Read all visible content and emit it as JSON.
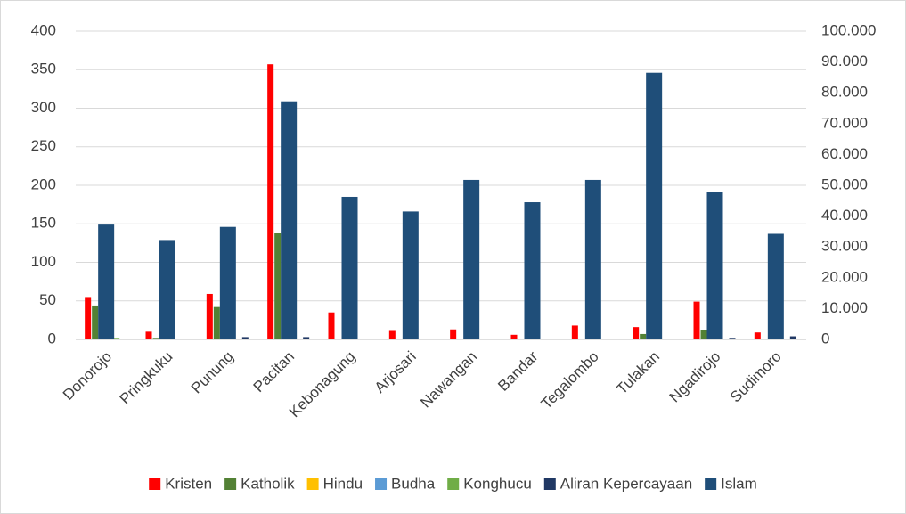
{
  "chart_data": {
    "type": "bar",
    "categories": [
      "Donorojo",
      "Pringkuku",
      "Punung",
      "Pacitan",
      "Kebonagung",
      "Arjosari",
      "Nawangan",
      "Bandar",
      "Tegalombo",
      "Tulakan",
      "Ngadirojo",
      "Sudimoro"
    ],
    "series": [
      {
        "name": "Kristen",
        "color": "#ff0000",
        "values": [
          55,
          10,
          59,
          357,
          35,
          11,
          13,
          6,
          18,
          16,
          49,
          9
        ]
      },
      {
        "name": "Katholik",
        "color": "#538135",
        "values": [
          44,
          2,
          42,
          138,
          0,
          0,
          1,
          0,
          1,
          7,
          12,
          0
        ]
      },
      {
        "name": "Hindu",
        "color": "#ffc000",
        "values": [
          0,
          0,
          0,
          0,
          0,
          0,
          0,
          0,
          0,
          0,
          0,
          0
        ]
      },
      {
        "name": "Budha",
        "color": "#5b9bd5",
        "values": [
          0,
          0,
          0,
          0,
          0,
          0,
          0,
          0,
          0,
          0,
          0,
          0
        ]
      },
      {
        "name": "Konghucu",
        "color": "#70ad47",
        "values": [
          2,
          1,
          0,
          0,
          0,
          0,
          0,
          0,
          0,
          0,
          0,
          0
        ]
      },
      {
        "name": "Aliran Kepercayaan",
        "color": "#203864",
        "values": [
          0,
          0,
          3,
          3,
          0,
          0,
          0,
          0,
          0,
          0,
          2,
          4
        ]
      },
      {
        "name": "Islam",
        "color": "#1f4e79",
        "axis": "y2",
        "values": [
          37250,
          32250,
          36500,
          77250,
          46250,
          41500,
          51750,
          44500,
          51750,
          86500,
          47750,
          34250
        ]
      }
    ],
    "ylim": [
      0,
      400
    ],
    "yticks": [
      0,
      50,
      100,
      150,
      200,
      250,
      300,
      350,
      400
    ],
    "y2lim": [
      0,
      100000
    ],
    "y2ticks": [
      0,
      {
        "value": 10000,
        "label": "10.000"
      },
      {
        "value": 20000,
        "label": "20.000"
      },
      {
        "value": 30000,
        "label": "30.000"
      },
      {
        "value": 40000,
        "label": "40.000"
      },
      {
        "value": 50000,
        "label": "50.000"
      },
      {
        "value": 60000,
        "label": "60.000"
      },
      {
        "value": 70000,
        "label": "70.000"
      },
      {
        "value": 80000,
        "label": "80.000"
      },
      {
        "value": 90000,
        "label": "90.000"
      },
      {
        "value": 100000,
        "label": "100.000"
      }
    ],
    "grid": true,
    "legend": "bottom"
  }
}
